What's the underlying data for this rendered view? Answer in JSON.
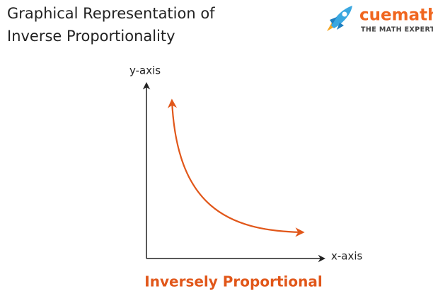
{
  "header": {
    "title_lines": [
      "Graphical Representation of",
      "Inverse Proportionality"
    ],
    "logo": {
      "name": "cuemath",
      "tagline": "THE MATH EXPERT"
    }
  },
  "diagram": {
    "y_axis_label": "y-axis",
    "x_axis_label": "x-axis",
    "caption": "Inversely Proportional"
  }
}
